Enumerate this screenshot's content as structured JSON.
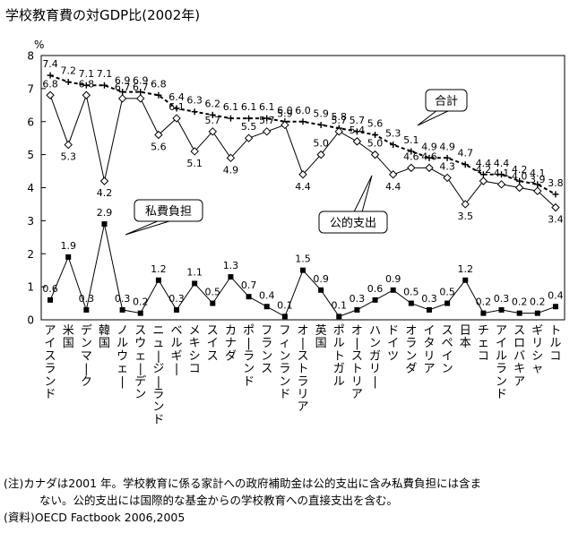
{
  "title": "学校教育費の対GDP比(2002年)",
  "notes": {
    "line1": "(注)カナダは2001 年。学校教育に係る家計への政府補助金は公的支出に含み私費負担には含ま",
    "line2": "ない。公的支出には国際的な基金からの学校教育への直接支出を含む。",
    "line3": "(資料)OECD Factbook 2006,2005"
  },
  "chart_data": {
    "type": "line",
    "ylabel": "%",
    "ylim": [
      0,
      8
    ],
    "yticks": [
      0,
      1,
      2,
      3,
      4,
      5,
      6,
      7,
      8
    ],
    "grid": false,
    "categories": [
      "アイスランド",
      "米国",
      "デンマーク",
      "韓国",
      "ノルウェー",
      "スウェーデン",
      "ニュージーランド",
      "ベルギー",
      "メキシコ",
      "スイス",
      "カナダ",
      "ポーランド",
      "フランス",
      "フィンランド",
      "オーストラリア",
      "英国",
      "ポルトガル",
      "オーストリア",
      "ハンガリー",
      "ドイツ",
      "オランダ",
      "イタリア",
      "スペイン",
      "日本",
      "チェコ",
      "アイルランド",
      "スロバキア",
      "ギリシャ",
      "トルコ"
    ],
    "series": [
      {
        "name": "合計",
        "marker": "plus",
        "dashed": true,
        "values": [
          7.4,
          7.2,
          7.1,
          7.1,
          6.9,
          6.9,
          6.8,
          6.4,
          6.3,
          6.2,
          6.1,
          6.1,
          6.1,
          6.0,
          6.0,
          5.9,
          5.8,
          5.7,
          5.6,
          5.3,
          5.1,
          4.9,
          4.9,
          4.7,
          4.4,
          4.4,
          4.2,
          4.1,
          3.8
        ]
      },
      {
        "name": "公的支出",
        "marker": "diamond",
        "values": [
          6.8,
          5.3,
          6.8,
          4.2,
          6.7,
          6.7,
          5.6,
          6.1,
          5.1,
          5.7,
          4.9,
          5.5,
          5.7,
          5.9,
          4.4,
          5.0,
          5.7,
          5.4,
          5.0,
          4.4,
          4.6,
          4.6,
          4.3,
          3.5,
          4.2,
          4.1,
          4.0,
          3.9,
          3.4
        ]
      },
      {
        "name": "私費負担",
        "marker": "square",
        "values": [
          0.6,
          1.9,
          0.3,
          2.9,
          0.3,
          0.2,
          1.2,
          0.3,
          1.1,
          0.5,
          1.3,
          0.7,
          0.4,
          0.1,
          1.5,
          0.9,
          0.1,
          0.3,
          0.6,
          0.9,
          0.5,
          0.3,
          0.5,
          1.2,
          0.2,
          0.3,
          0.2,
          0.2,
          0.4
        ]
      }
    ],
    "annotations": [
      "合計",
      "公的支出",
      "私費負担"
    ]
  }
}
